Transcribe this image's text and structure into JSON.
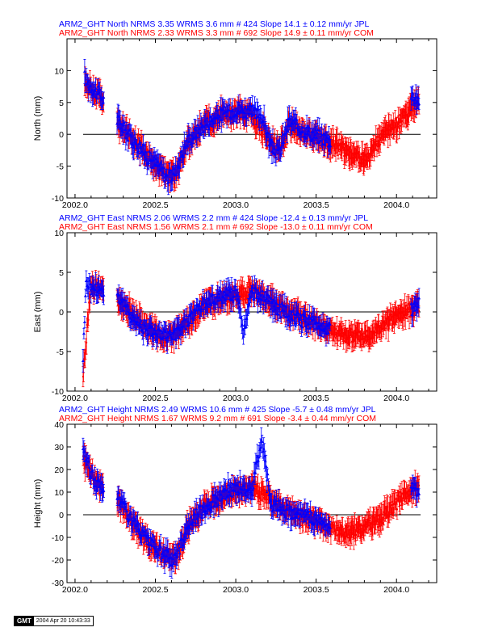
{
  "chart_data": [
    {
      "type": "scatter",
      "ylabel": "North (mm)",
      "xlim": [
        2001.95,
        2004.25
      ],
      "ylim": [
        -10,
        15
      ],
      "yticks": [
        -10,
        -5,
        0,
        5,
        10
      ],
      "xticks": [
        2002.0,
        2002.5,
        2003.0,
        2003.5,
        2004.0
      ],
      "xtick_labels": [
        "2002.0",
        "2002.5",
        "2003.0",
        "2003.5",
        "2004.0"
      ],
      "zero_line": 0,
      "errorbars": true,
      "legend": [
        {
          "text": "ARM2_GHT North NRMS 3.35 WRMS  3.6 mm # 424 Slope   14.1 ±  0.12 mm/yr JPL",
          "color": "#0000ff"
        },
        {
          "text": "ARM2_GHT North NRMS 2.33 WRMS  3.3 mm # 692 Slope   14.9 ±  0.11 mm/yr COM",
          "color": "#ff0000"
        }
      ],
      "series": [
        {
          "name": "JPL",
          "color": "#0000ff",
          "n": 424,
          "x": [
            2002.06,
            2002.08,
            2002.1,
            2002.16,
            2002.27,
            2002.33,
            2002.4,
            2002.45,
            2002.52,
            2002.58,
            2002.62,
            2002.7,
            2002.8,
            2002.9,
            2003.0,
            2003.08,
            2003.16,
            2003.22,
            2003.27,
            2003.33,
            2003.4,
            2003.48,
            2003.54,
            2003.58,
            2004.1,
            2004.14
          ],
          "y": [
            9,
            8,
            7.5,
            6,
            2,
            0,
            -2,
            -3.5,
            -5,
            -7,
            -6,
            -1,
            1.5,
            3,
            4,
            3.5,
            3,
            -2,
            -3,
            2,
            1,
            0,
            -0.5,
            -1,
            6,
            5.5
          ]
        },
        {
          "name": "COM",
          "color": "#ff0000",
          "n": 692,
          "x": [
            2002.06,
            2002.1,
            2002.16,
            2002.27,
            2002.35,
            2002.45,
            2002.55,
            2002.62,
            2002.7,
            2002.8,
            2002.9,
            2003.0,
            2003.1,
            2003.2,
            2003.27,
            2003.33,
            2003.45,
            2003.55,
            2003.62,
            2003.72,
            2003.82,
            2003.9,
            2004.0,
            2004.1,
            2004.14
          ],
          "y": [
            8.5,
            7,
            6,
            1.5,
            -0.5,
            -3.5,
            -6,
            -6.5,
            -1.5,
            1.5,
            3,
            3.5,
            3,
            -0.5,
            -2.5,
            1.5,
            0,
            -1,
            -1.5,
            -3,
            -4,
            -0.5,
            1.5,
            4,
            5.5
          ]
        }
      ]
    },
    {
      "type": "scatter",
      "ylabel": "East (mm)",
      "xlim": [
        2001.95,
        2004.25
      ],
      "ylim": [
        -10,
        10
      ],
      "yticks": [
        -10,
        -5,
        0,
        5,
        10
      ],
      "xticks": [
        2002.0,
        2002.5,
        2003.0,
        2003.5,
        2004.0
      ],
      "xtick_labels": [
        "2002.0",
        "2002.5",
        "2003.0",
        "2003.5",
        "2004.0"
      ],
      "zero_line": 0,
      "errorbars": true,
      "legend": [
        {
          "text": "ARM2_GHT East NRMS 2.06 WRMS  2.2 mm # 424 Slope  -12.4 ±  0.13 mm/yr JPL",
          "color": "#0000ff"
        },
        {
          "text": "ARM2_GHT East NRMS 1.56 WRMS  2.1 mm # 692 Slope  -13.0 ±  0.11 mm/yr COM",
          "color": "#ff0000"
        }
      ],
      "series": [
        {
          "name": "JPL",
          "color": "#0000ff",
          "n": 424,
          "x": [
            2002.05,
            2002.07,
            2002.1,
            2002.16,
            2002.27,
            2002.33,
            2002.4,
            2002.48,
            2002.55,
            2002.62,
            2002.7,
            2002.8,
            2002.9,
            2003.0,
            2003.05,
            2003.1,
            2003.16,
            2003.22,
            2003.3,
            2003.4,
            2003.5,
            2003.58,
            2004.12,
            2004.14
          ],
          "y": [
            -5.5,
            4,
            3,
            3,
            2,
            0,
            -1.5,
            -2.5,
            -3,
            -3,
            -1,
            1,
            2,
            2.5,
            -2.5,
            2.5,
            2,
            1,
            0,
            -1,
            -1.5,
            -2,
            0.5,
            1
          ]
        },
        {
          "name": "COM",
          "color": "#ff0000",
          "n": 692,
          "x": [
            2002.05,
            2002.1,
            2002.16,
            2002.27,
            2002.35,
            2002.45,
            2002.55,
            2002.62,
            2002.7,
            2002.8,
            2002.9,
            2003.0,
            2003.12,
            2003.2,
            2003.3,
            2003.4,
            2003.5,
            2003.6,
            2003.7,
            2003.8,
            2003.9,
            2004.0,
            2004.1,
            2004.14
          ],
          "y": [
            -8,
            3.5,
            3,
            1.5,
            0,
            -2,
            -3,
            -3,
            -1.5,
            1,
            1.5,
            2,
            2.5,
            1.5,
            0.5,
            -0.5,
            -1.5,
            -2.5,
            -3,
            -3,
            -2,
            -0.5,
            0.5,
            0.5
          ]
        }
      ]
    },
    {
      "type": "scatter",
      "ylabel": "Height (mm)",
      "xlim": [
        2001.95,
        2004.25
      ],
      "ylim": [
        -30,
        40
      ],
      "yticks": [
        -30,
        -20,
        -10,
        0,
        10,
        20,
        30,
        40
      ],
      "xticks": [
        2002.0,
        2002.5,
        2003.0,
        2003.5,
        2004.0
      ],
      "xtick_labels": [
        "2002.0",
        "2002.5",
        "2003.0",
        "2003.5",
        "2004.0"
      ],
      "zero_line": 0,
      "errorbars": true,
      "legend": [
        {
          "text": "ARM2_GHT Height NRMS 2.49 WRMS 10.6 mm # 425 Slope   -5.7 ±  0.48 mm/yr JPL",
          "color": "#0000ff"
        },
        {
          "text": "ARM2_GHT Height NRMS 1.67 WRMS  9.2 mm # 691 Slope   -3.4 ±  0.44 mm/yr COM",
          "color": "#ff0000"
        }
      ],
      "series": [
        {
          "name": "JPL",
          "color": "#0000ff",
          "n": 425,
          "x": [
            2002.05,
            2002.08,
            2002.12,
            2002.16,
            2002.27,
            2002.35,
            2002.45,
            2002.55,
            2002.62,
            2002.7,
            2002.8,
            2002.9,
            2003.0,
            2003.1,
            2003.16,
            2003.22,
            2003.3,
            2003.4,
            2003.5,
            2003.58,
            2004.12,
            2004.14
          ],
          "y": [
            30,
            22,
            15,
            12,
            8,
            -2,
            -12,
            -18,
            -20,
            -5,
            3,
            8,
            12,
            10,
            35,
            5,
            2,
            0,
            -2,
            -5,
            12,
            10
          ]
        },
        {
          "name": "COM",
          "color": "#ff0000",
          "n": 691,
          "x": [
            2002.05,
            2002.1,
            2002.16,
            2002.27,
            2002.35,
            2002.45,
            2002.55,
            2002.62,
            2002.7,
            2002.8,
            2002.9,
            2003.0,
            2003.1,
            2003.2,
            2003.3,
            2003.4,
            2003.5,
            2003.6,
            2003.7,
            2003.8,
            2003.9,
            2004.0,
            2004.1,
            2004.14
          ],
          "y": [
            25,
            18,
            12,
            6,
            -3,
            -12,
            -18,
            -20,
            -6,
            3,
            8,
            10,
            12,
            8,
            3,
            0,
            -3,
            -6,
            -8,
            -6,
            -2,
            5,
            12,
            12
          ]
        }
      ]
    }
  ],
  "footer": {
    "logo": "GMT",
    "timestamp": "2004 Apr 20 10:43:33"
  }
}
